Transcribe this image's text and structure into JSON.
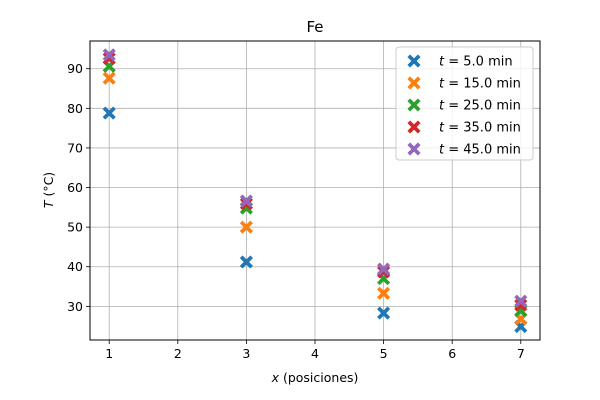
{
  "chart_data": {
    "type": "scatter",
    "title": "Fe",
    "xlabel_var": "x",
    "xlabel_rest": " (posiciones)",
    "ylabel_var": "T",
    "ylabel_rest": " (°C)",
    "xlim": [
      0.72,
      7.28
    ],
    "ylim": [
      21.5,
      97
    ],
    "xticks": [
      1,
      2,
      3,
      4,
      5,
      6,
      7
    ],
    "yticks": [
      30,
      40,
      50,
      60,
      70,
      80,
      90
    ],
    "grid": true,
    "legend_position": "top-right",
    "marker": "X",
    "x": [
      1,
      3,
      5,
      7
    ],
    "series": [
      {
        "name_var": "t",
        "name_rest": " = 5.0 min",
        "color": "#1f77b4",
        "values": [
          78.8,
          41.2,
          28.3,
          24.9
        ]
      },
      {
        "name_var": "t",
        "name_rest": " = 15.0 min",
        "color": "#ff7f0e",
        "values": [
          87.6,
          50.0,
          33.3,
          26.8
        ]
      },
      {
        "name_var": "t",
        "name_rest": " = 25.0 min",
        "color": "#2ca02c",
        "values": [
          90.6,
          54.8,
          37.0,
          28.9
        ]
      },
      {
        "name_var": "t",
        "name_rest": " = 35.0 min",
        "color": "#d62728",
        "values": [
          92.6,
          55.9,
          38.7,
          30.3
        ]
      },
      {
        "name_var": "t",
        "name_rest": " = 45.0 min",
        "color": "#9467bd",
        "values": [
          93.5,
          56.6,
          39.4,
          31.3
        ]
      }
    ]
  }
}
